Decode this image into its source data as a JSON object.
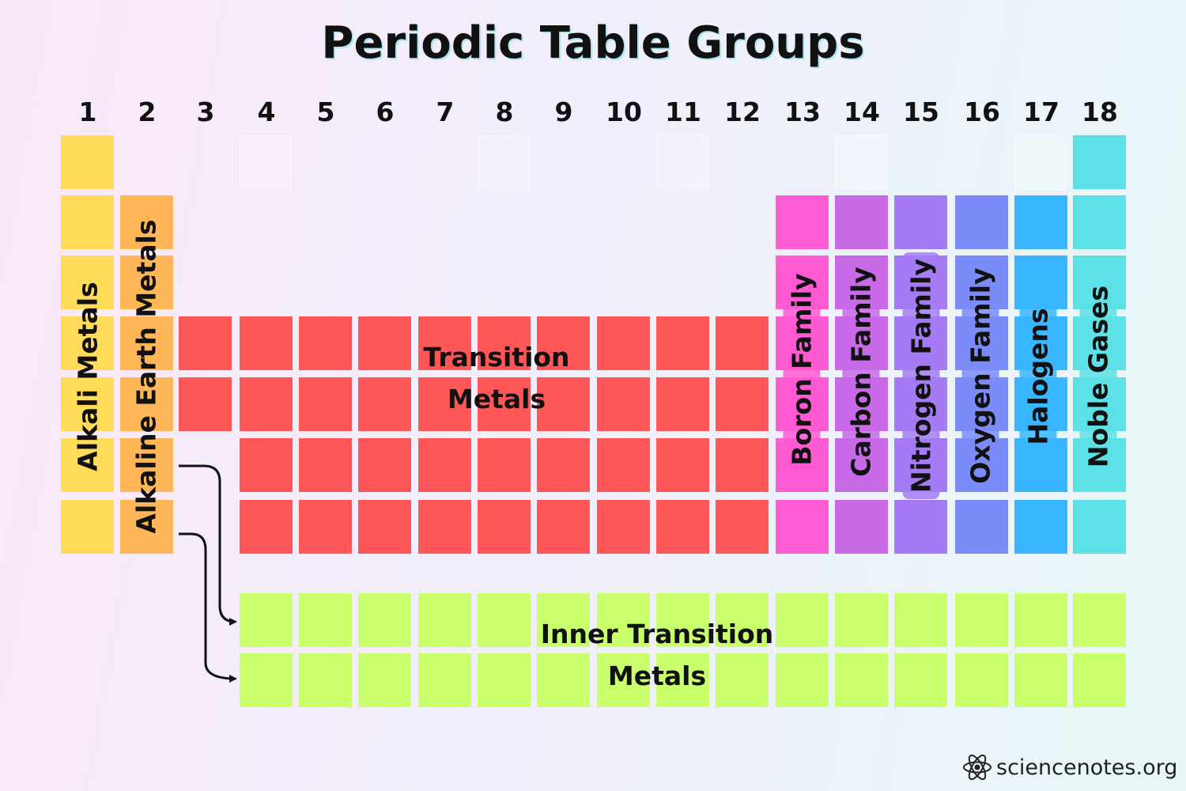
{
  "title": "Periodic Table Groups",
  "group_numbers": [
    "1",
    "2",
    "3",
    "4",
    "5",
    "6",
    "7",
    "8",
    "9",
    "10",
    "11",
    "12",
    "13",
    "14",
    "15",
    "16",
    "17",
    "18"
  ],
  "colors": {
    "alkali": "#ffdb57",
    "alkaline": "#ffb657",
    "transition": "#ff5757",
    "inner_transition": "#c9ff6b",
    "boron": "#ff5bd2",
    "carbon": "#c86ae6",
    "nitrogen": "#a57bf5",
    "oxygen": "#7b8bf7",
    "halogens": "#38b6ff",
    "noble": "#5ce1e6"
  },
  "labels": {
    "alkali": "Alkali Metals",
    "alkaline": "Alkaline Earth Metals",
    "transition_line1": "Transition",
    "transition_line2": "Metals",
    "inner_line1": "Inner Transition",
    "inner_line2": "Metals",
    "boron": "Boron Family",
    "carbon": "Carbon Family",
    "nitrogen": "Nitrogen Family",
    "oxygen": "Oxygen Family",
    "halogens": "Halogens",
    "noble": "Noble Gases"
  },
  "footer": {
    "site": "sciencenotes.org",
    "logo_icon": "atom-icon"
  }
}
